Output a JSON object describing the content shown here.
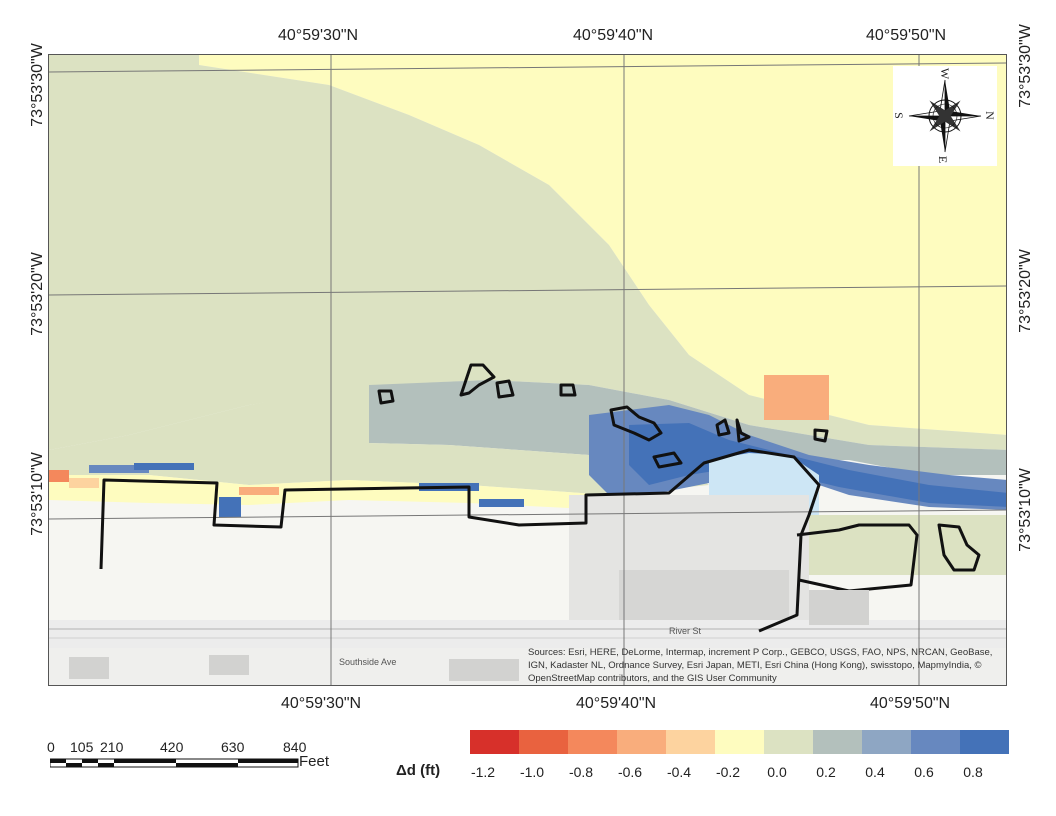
{
  "coordinates": {
    "top_lat": [
      "40°59'30\"N",
      "40°59'40\"N",
      "40°59'50\"N"
    ],
    "bottom_lat": [
      "40°59'30\"N",
      "40°59'40\"N",
      "40°59'50\"N"
    ],
    "left_lon": [
      "73°53'30\"W",
      "73°53'20\"W",
      "73°53'10\"W"
    ],
    "right_lon": [
      "73°53'30\"W",
      "73°53'20\"W",
      "73°53'10\"W"
    ]
  },
  "compass": {
    "n": "N",
    "s": "S",
    "e": "E",
    "w": "W"
  },
  "map_labels": {
    "street1": "River St",
    "street2": "Southside Ave"
  },
  "attribution": "Sources: Esri, HERE, DeLorme, Intermap, increment P Corp., GEBCO, USGS, FAO, NPS, NRCAN, GeoBase, IGN, Kadaster NL, Ordnance Survey, Esri Japan, METI, Esri China (Hong Kong), swisstopo, MapmyIndia, © OpenStreetMap contributors, and the GIS User Community",
  "scale_bar": {
    "labels": [
      "0",
      "105",
      "210",
      "420",
      "630",
      "840"
    ],
    "unit": "Feet"
  },
  "legend": {
    "title": "Δd (ft)",
    "ticks": [
      "-1.2",
      "-1.0",
      "-0.8",
      "-0.6",
      "-0.4",
      "-0.2",
      "0.0",
      "0.2",
      "0.4",
      "0.6",
      "0.8"
    ],
    "colors": [
      "#d7302a",
      "#e9623f",
      "#f4885c",
      "#f9ad7c",
      "#fdd39f",
      "#fefcbf",
      "#dce2c2",
      "#b3c0bc",
      "#8ea6c3",
      "#6788bf",
      "#4472b8"
    ]
  }
}
